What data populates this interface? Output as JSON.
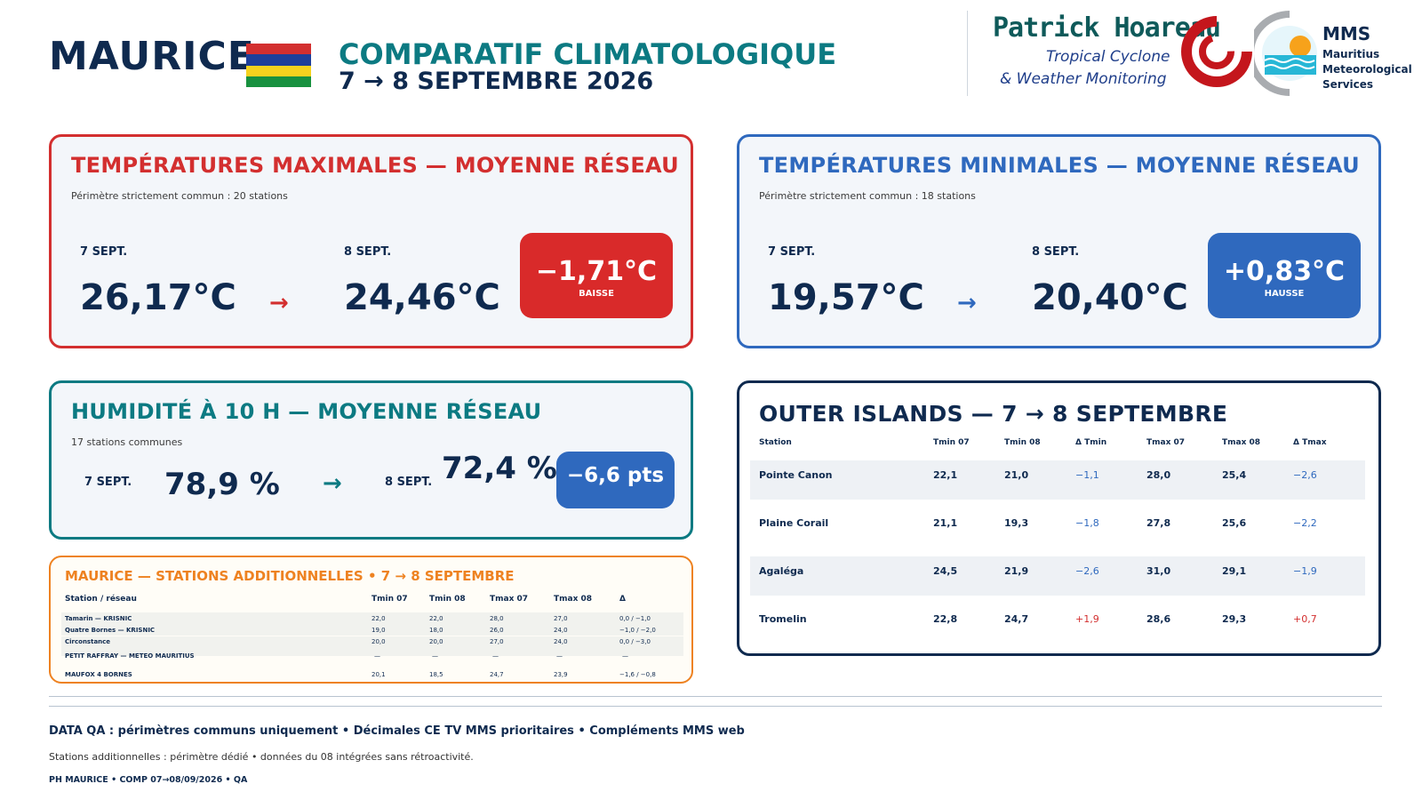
{
  "header": {
    "country": "MAURICE",
    "subtitle": "COMPARATIF CLIMATOLOGIQUE",
    "dates": "7 → 8 SEPTEMBRE 2026",
    "flag_colors": [
      "#d32f2f",
      "#1e3f9a",
      "#f5d21e",
      "#18913f"
    ]
  },
  "logo": {
    "name": "Patrick Hoareau",
    "tagline1": "Tropical Cyclone",
    "tagline2": "& Weather Monitoring",
    "mms_abbr": "MMS",
    "mms_line1": "Mauritius",
    "mms_line2": "Meteorological",
    "mms_line3": "Services"
  },
  "tmax": {
    "title": "TEMPÉRATURES MAXIMALES — MOYENNE RÉSEAU",
    "note": "Périmètre strictement commun : 20 stations",
    "day1_label": "7 SEPT.",
    "day1_value": "26,17°C",
    "day2_label": "8 SEPT.",
    "day2_value": "24,46°C",
    "arrow": "→",
    "delta": "−1,71°C",
    "delta_label": "BAISSE",
    "color": "#d32f2f"
  },
  "tmin": {
    "title": "TEMPÉRATURES MINIMALES — MOYENNE RÉSEAU",
    "note": "Périmètre strictement commun : 18 stations",
    "day1_label": "7 SEPT.",
    "day1_value": "19,57°C",
    "day2_label": "8 SEPT.",
    "day2_value": "20,40°C",
    "arrow": "→",
    "delta": "+0,83°C",
    "delta_label": "HAUSSE",
    "color": "#2f69be"
  },
  "humidity": {
    "title": "HUMIDITÉ À 10 H — MOYENNE RÉSEAU",
    "note": "17 stations communes",
    "day1_label": "7 SEPT.",
    "day1_value": "78,9 %",
    "day2_label": "8 SEPT.",
    "day2_value": "72,4 %",
    "arrow": "→",
    "delta": "−6,6 pts",
    "color": "#0c7a82"
  },
  "outer_islands": {
    "title": "OUTER ISLANDS — 7 → 8 SEPTEMBRE",
    "headers": [
      "Station",
      "Tmin 07",
      "Tmin 08",
      "Δ Tmin",
      "Tmax 07",
      "Tmax 08",
      "Δ Tmax"
    ],
    "rows": [
      [
        "Pointe Canon",
        "22,1",
        "21,0",
        "−1,1",
        "28,0",
        "25,4",
        "−2,6"
      ],
      [
        "Plaine Corail",
        "21,1",
        "19,3",
        "−1,8",
        "27,8",
        "25,6",
        "−2,2"
      ],
      [
        "Agaléga",
        "24,5",
        "21,9",
        "−2,6",
        "31,0",
        "29,1",
        "−1,9"
      ],
      [
        "Tromelin",
        "22,8",
        "24,7",
        "+1,9",
        "28,6",
        "29,3",
        "+0,7"
      ]
    ]
  },
  "additional": {
    "title": "MAURICE — STATIONS ADDITIONNELLES • 7 → 8 SEPTEMBRE",
    "headers": [
      "Station / réseau",
      "Tmin 07",
      "Tmin 08",
      "Tmax 07",
      "Tmax 08",
      "Δ"
    ],
    "rows": [
      [
        "Tamarin — KRISNIC",
        "22,0",
        "22,0",
        "28,0",
        "27,0",
        "0,0 / −1,0"
      ],
      [
        "Quatre Bornes — KRISNIC",
        "19,0",
        "18,0",
        "26,0",
        "24,0",
        "−1,0 / −2,0"
      ],
      [
        "Circonstance",
        "20,0",
        "20,0",
        "27,0",
        "24,0",
        "0,0 / −3,0"
      ],
      [
        "PETIT RAFFRAY — METEO MAURITIUS",
        "—",
        "—",
        "—",
        "—",
        "—"
      ],
      [
        "MAUFOX 4 BORNES",
        "20,1",
        "18,5",
        "24,7",
        "23,9",
        "−1,6 / −0,8"
      ]
    ]
  },
  "footer": {
    "line1": "DATA QA : périmètres communs uniquement • Décimales CE TV MMS prioritaires • Compléments MMS web",
    "line2": "Stations additionnelles : périmètre dédié • données du 08 intégrées sans rétroactivité.",
    "line3": "PH MAURICE • COMP 07→08/09/2026 • QA"
  }
}
